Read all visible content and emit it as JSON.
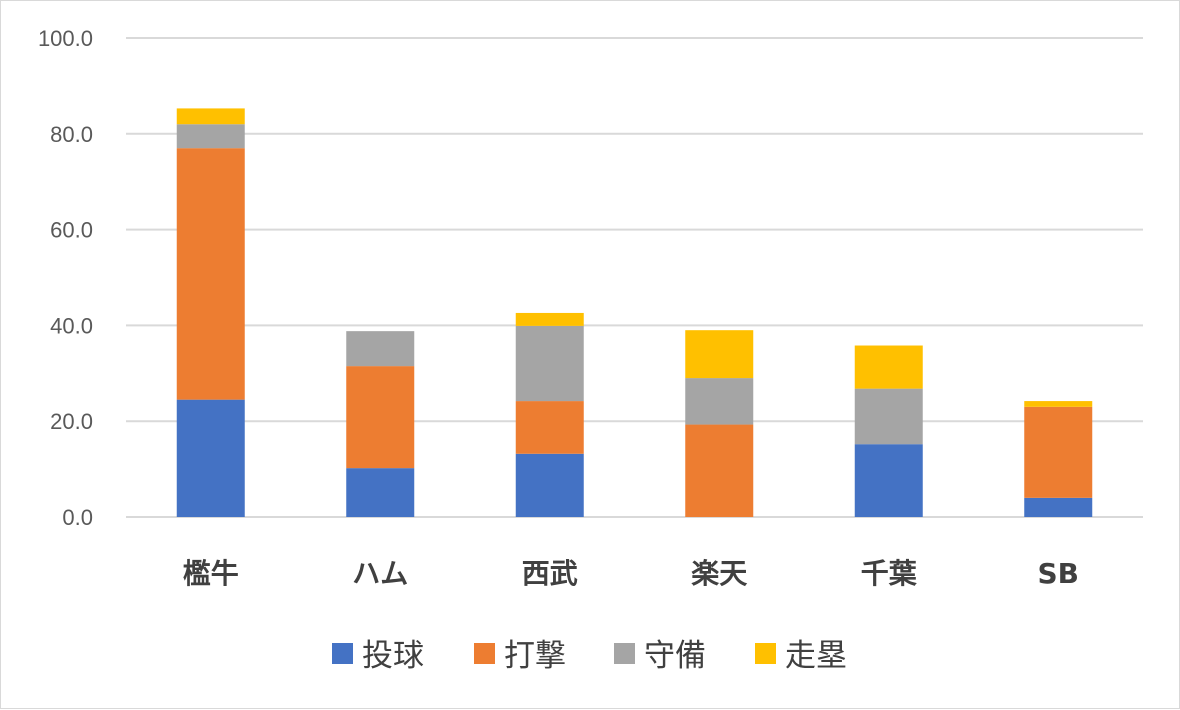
{
  "chart_data": {
    "type": "bar",
    "stacked": true,
    "categories": [
      "檻牛",
      "ハム",
      "西武",
      "楽天",
      "千葉",
      "SB"
    ],
    "series": [
      {
        "name": "投球",
        "color": "#4472C4",
        "values": [
          24.5,
          10.2,
          13.2,
          0.0,
          15.2,
          4.0
        ]
      },
      {
        "name": "打撃",
        "color": "#ED7D31",
        "values": [
          52.5,
          21.3,
          11.0,
          19.3,
          0.0,
          19.0
        ]
      },
      {
        "name": "守備",
        "color": "#A5A5A5",
        "values": [
          5.0,
          7.3,
          15.7,
          9.7,
          11.6,
          0.0
        ]
      },
      {
        "name": "走塁",
        "color": "#FFC000",
        "values": [
          3.3,
          0.0,
          2.7,
          10.0,
          9.0,
          1.2
        ]
      }
    ],
    "y_ticks": [
      "0.0",
      "20.0",
      "40.0",
      "60.0",
      "80.0",
      "100.0"
    ],
    "ylim": [
      0,
      100
    ],
    "grid": true,
    "legend_position": "bottom"
  }
}
